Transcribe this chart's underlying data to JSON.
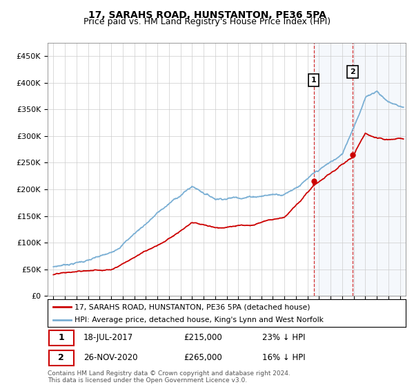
{
  "title": "17, SARAHS ROAD, HUNSTANTON, PE36 5PA",
  "subtitle": "Price paid vs. HM Land Registry's House Price Index (HPI)",
  "ylabel_ticks": [
    "£0",
    "£50K",
    "£100K",
    "£150K",
    "£200K",
    "£250K",
    "£300K",
    "£350K",
    "£400K",
    "£450K"
  ],
  "ylabel_values": [
    0,
    50000,
    100000,
    150000,
    200000,
    250000,
    300000,
    350000,
    400000,
    450000
  ],
  "ylim": [
    0,
    475000
  ],
  "xlim_start": 1994.5,
  "xlim_end": 2025.5,
  "marker1_x": 2017.54,
  "marker1_y": 215000,
  "marker2_x": 2020.9,
  "marker2_y": 265000,
  "vline1_x": 2017.54,
  "vline2_x": 2020.9,
  "line_red_label": "17, SARAHS ROAD, HUNSTANTON, PE36 5PA (detached house)",
  "line_blue_label": "HPI: Average price, detached house, King's Lynn and West Norfolk",
  "table_row1": [
    "1",
    "18-JUL-2017",
    "£215,000",
    "23% ↓ HPI"
  ],
  "table_row2": [
    "2",
    "26-NOV-2020",
    "£265,000",
    "16% ↓ HPI"
  ],
  "footer": "Contains HM Land Registry data © Crown copyright and database right 2024.\nThis data is licensed under the Open Government Licence v3.0.",
  "color_red": "#cc0000",
  "color_blue": "#7aafd4",
  "color_vline": "#cc0000",
  "title_fontsize": 10,
  "subtitle_fontsize": 9
}
